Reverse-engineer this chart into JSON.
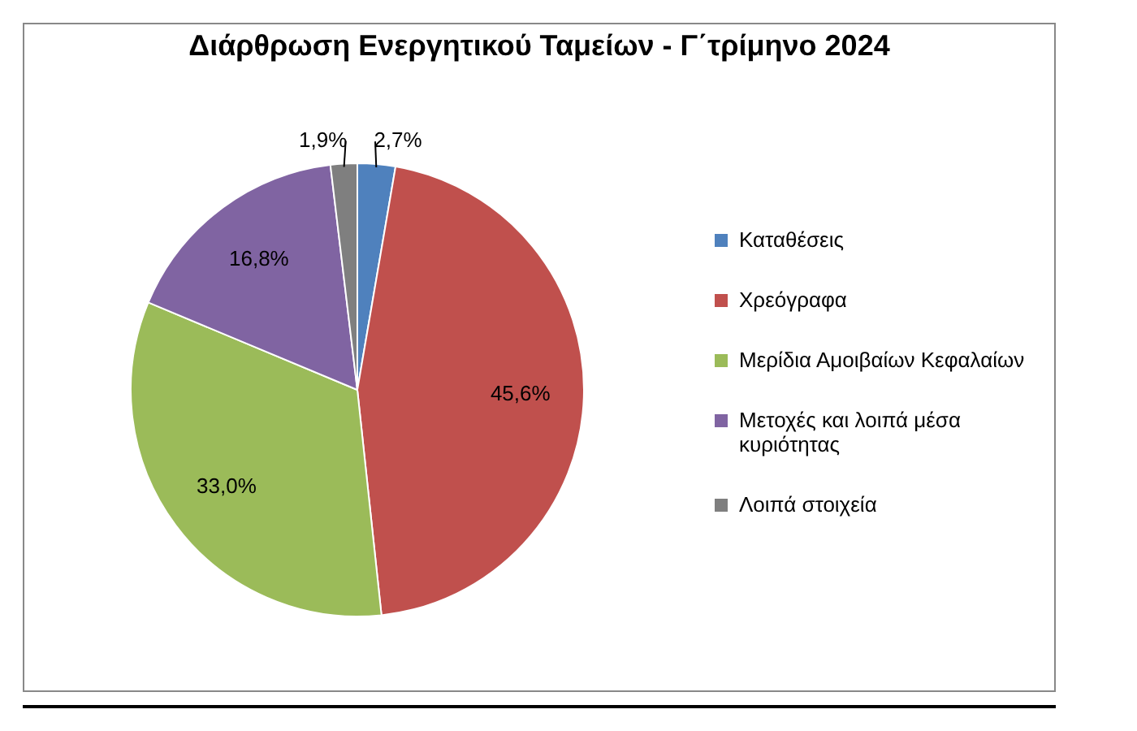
{
  "chart_data": {
    "type": "pie",
    "title": "Διάρθρωση Ενεργητικού Ταμείων - Γ΄τρίμηνο 2024",
    "categories": [
      "Καταθέσεις",
      "Χρεόγραφα",
      "Μερίδια Αμοιβαίων Κεφαλαίων",
      "Μετοχές και λοιπά μέσα κυριότητας",
      "Λοιπά στοιχεία"
    ],
    "values": [
      2.7,
      45.6,
      33.0,
      16.8,
      1.9
    ],
    "value_labels": [
      "2,7%",
      "45,6%",
      "33,0%",
      "16,8%",
      "1,9%"
    ],
    "colors": [
      "#4f81bd",
      "#c0504d",
      "#9bbb59",
      "#8064a2",
      "#7f7f7f"
    ],
    "legend": "right"
  }
}
